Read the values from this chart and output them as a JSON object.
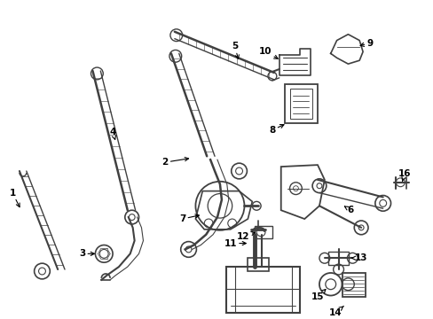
{
  "bg_color": "#ffffff",
  "line_color": "#404040",
  "label_color": "#000000",
  "fig_width": 4.89,
  "fig_height": 3.6,
  "dpi": 100
}
